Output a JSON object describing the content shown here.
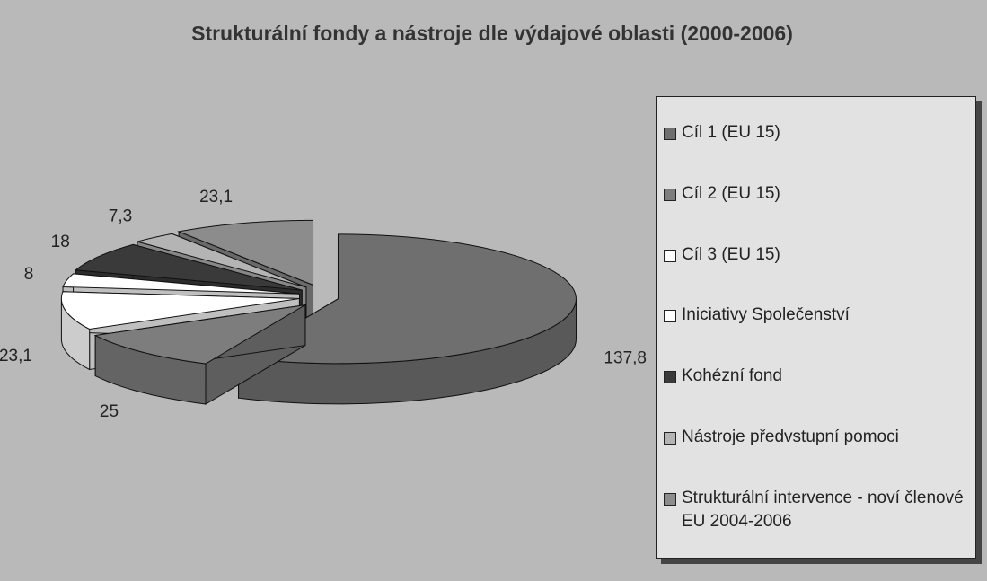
{
  "chart_data": {
    "type": "pie",
    "title": "Strukturální fondy a nástroje dle výdajové oblasti (2000-2006)",
    "categories": [
      "Cíl 1 (EU 15)",
      "Cíl 2 (EU 15)",
      "Cíl 3 (EU 15)",
      "Iniciativy Společenství",
      "Kohézní fond",
      "Nástroje předvstupní pomoci",
      "Strukturální intervence - noví členové EU 2004-2006"
    ],
    "values": [
      137.8,
      25,
      23.1,
      8,
      18,
      7.3,
      23.1
    ],
    "value_labels": [
      "137,8",
      "25",
      "23,1",
      "8",
      "18",
      "7,3",
      "23,1"
    ],
    "colors": [
      "#6f6f6f",
      "#7d7d7d",
      "#ffffff",
      "#ffffff",
      "#3a3a3a",
      "#b4b4b4",
      "#8c8c8c"
    ],
    "legend": "right"
  }
}
